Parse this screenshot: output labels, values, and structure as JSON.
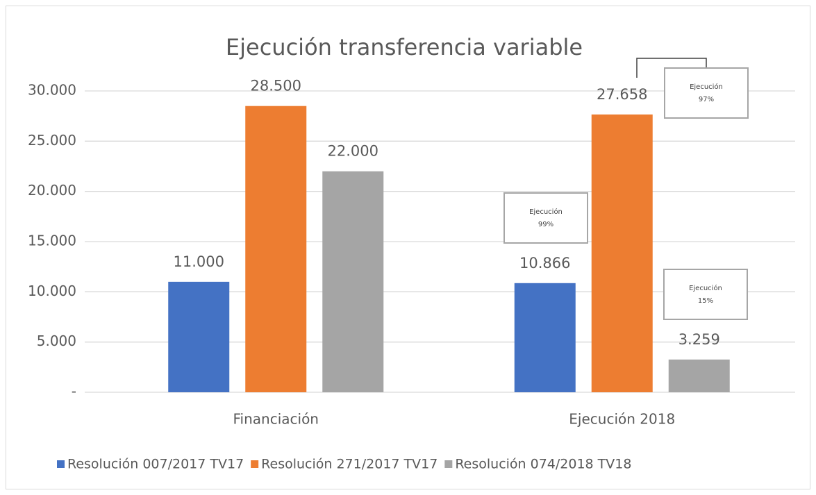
{
  "chart_data": {
    "type": "bar",
    "title": "Ejecución transferencia variable",
    "categories": [
      "Financiación",
      "Ejecución 2018"
    ],
    "series": [
      {
        "name": "Resolución 007/2017 TV17",
        "color": "#4472c4",
        "values": [
          11000,
          10866
        ],
        "value_labels": [
          "11.000",
          "10.866"
        ]
      },
      {
        "name": "Resolución 271/2017 TV17",
        "color": "#ed7d31",
        "values": [
          28500,
          27658
        ],
        "value_labels": [
          "28.500",
          "27.658"
        ]
      },
      {
        "name": "Resolución 074/2018 TV18",
        "color": "#a5a5a5",
        "values": [
          22000,
          3259
        ],
        "value_labels": [
          "22.000",
          "3.259"
        ]
      }
    ],
    "ylim": [
      0,
      30000
    ],
    "yticks": [
      {
        "value": 0,
        "label": "-"
      },
      {
        "value": 5000,
        "label": "5.000"
      },
      {
        "value": 10000,
        "label": "10.000"
      },
      {
        "value": 15000,
        "label": "15.000"
      },
      {
        "value": 20000,
        "label": "20.000"
      },
      {
        "value": 25000,
        "label": "25.000"
      },
      {
        "value": 30000,
        "label": "30.000"
      }
    ],
    "grid": true,
    "legend": "bottom",
    "annotations": [
      {
        "lines": [
          "Ejecución",
          "97%"
        ]
      },
      {
        "lines": [
          "Ejecución",
          "99%"
        ]
      },
      {
        "lines": [
          "Ejecución",
          "15%"
        ]
      }
    ]
  }
}
